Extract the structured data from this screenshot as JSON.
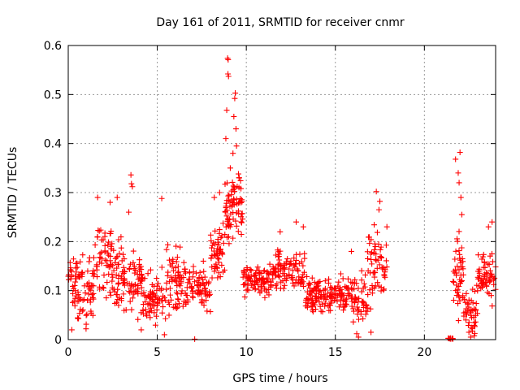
{
  "chart_data": {
    "type": "scatter",
    "title": "Day 161 of 2011, SRMTID for receiver cnmr",
    "xlabel": "GPS time / hours",
    "ylabel": "SRMTID / TECUs",
    "xlim": [
      0,
      24
    ],
    "ylim": [
      0,
      0.6
    ],
    "x_ticks": [
      0,
      5,
      10,
      15,
      20
    ],
    "x_tick_labels": [
      "0",
      "5",
      "10",
      "15",
      "20"
    ],
    "y_ticks": [
      0,
      0.1,
      0.2,
      0.3,
      0.4,
      0.5,
      0.6
    ],
    "y_tick_labels": [
      "0",
      "0.1",
      "0.2",
      "0.3",
      "0.4",
      "0.5",
      "0.6"
    ],
    "grid": true,
    "marker": "+",
    "color": "#ff0000",
    "series": [
      {
        "name": "SRMTID",
        "segments": [
          {
            "x_start": 0.0,
            "x_end": 0.5,
            "y_base": 0.12,
            "y_spread": 0.08,
            "count": 30
          },
          {
            "x_start": 0.5,
            "x_end": 1.5,
            "y_base": 0.1,
            "y_spread": 0.1,
            "count": 60
          },
          {
            "x_start": 1.5,
            "x_end": 2.5,
            "y_base": 0.16,
            "y_spread": 0.1,
            "count": 60
          },
          {
            "x_start": 2.5,
            "x_end": 3.5,
            "y_base": 0.13,
            "y_spread": 0.1,
            "count": 60
          },
          {
            "x_start": 3.5,
            "x_end": 4.2,
            "y_base": 0.12,
            "y_spread": 0.09,
            "count": 45
          },
          {
            "x_start": 4.2,
            "x_end": 5.5,
            "y_base": 0.08,
            "y_spread": 0.08,
            "count": 70
          },
          {
            "x_start": 5.5,
            "x_end": 6.5,
            "y_base": 0.12,
            "y_spread": 0.09,
            "count": 60
          },
          {
            "x_start": 6.5,
            "x_end": 8.0,
            "y_base": 0.11,
            "y_spread": 0.06,
            "count": 80
          },
          {
            "x_start": 8.0,
            "x_end": 8.8,
            "y_base": 0.17,
            "y_spread": 0.08,
            "count": 55
          },
          {
            "x_start": 8.8,
            "x_end": 9.8,
            "y_base": 0.26,
            "y_spread": 0.1,
            "count": 75
          },
          {
            "x_start": 9.8,
            "x_end": 11.5,
            "y_base": 0.12,
            "y_spread": 0.05,
            "count": 100
          },
          {
            "x_start": 11.5,
            "x_end": 13.3,
            "y_base": 0.14,
            "y_spread": 0.06,
            "count": 100
          },
          {
            "x_start": 13.3,
            "x_end": 14.6,
            "y_base": 0.09,
            "y_spread": 0.05,
            "count": 80
          },
          {
            "x_start": 14.6,
            "x_end": 16.0,
            "y_base": 0.09,
            "y_spread": 0.05,
            "count": 80
          },
          {
            "x_start": 16.0,
            "x_end": 16.8,
            "y_base": 0.08,
            "y_spread": 0.07,
            "count": 45
          },
          {
            "x_start": 16.8,
            "x_end": 17.9,
            "y_base": 0.15,
            "y_spread": 0.11,
            "count": 60
          },
          {
            "x_start": 21.3,
            "x_end": 21.6,
            "y_base": 0.002,
            "y_spread": 0.003,
            "count": 8
          },
          {
            "x_start": 21.6,
            "x_end": 22.2,
            "y_base": 0.13,
            "y_spread": 0.11,
            "count": 45
          },
          {
            "x_start": 22.2,
            "x_end": 23.0,
            "y_base": 0.06,
            "y_spread": 0.06,
            "count": 45
          },
          {
            "x_start": 23.0,
            "x_end": 24.0,
            "y_base": 0.13,
            "y_spread": 0.07,
            "count": 60
          }
        ],
        "peaks": [
          {
            "x": 8.95,
            "y": 0.574
          },
          {
            "x": 8.98,
            "y": 0.571
          },
          {
            "x": 8.97,
            "y": 0.542
          },
          {
            "x": 9.0,
            "y": 0.537
          },
          {
            "x": 9.38,
            "y": 0.503
          },
          {
            "x": 9.35,
            "y": 0.492
          },
          {
            "x": 8.9,
            "y": 0.468
          },
          {
            "x": 9.3,
            "y": 0.455
          },
          {
            "x": 9.42,
            "y": 0.43
          },
          {
            "x": 8.85,
            "y": 0.41
          },
          {
            "x": 9.45,
            "y": 0.395
          },
          {
            "x": 9.25,
            "y": 0.38
          },
          {
            "x": 9.1,
            "y": 0.35
          },
          {
            "x": 9.6,
            "y": 0.33
          },
          {
            "x": 3.52,
            "y": 0.336
          },
          {
            "x": 3.55,
            "y": 0.318
          },
          {
            "x": 3.6,
            "y": 0.312
          },
          {
            "x": 3.4,
            "y": 0.26
          },
          {
            "x": 1.65,
            "y": 0.29
          },
          {
            "x": 2.35,
            "y": 0.28
          },
          {
            "x": 2.75,
            "y": 0.29
          },
          {
            "x": 5.25,
            "y": 0.288
          },
          {
            "x": 8.2,
            "y": 0.29
          },
          {
            "x": 8.5,
            "y": 0.3
          },
          {
            "x": 21.75,
            "y": 0.368
          },
          {
            "x": 22.0,
            "y": 0.382
          },
          {
            "x": 21.9,
            "y": 0.34
          },
          {
            "x": 21.95,
            "y": 0.32
          },
          {
            "x": 22.05,
            "y": 0.29
          },
          {
            "x": 22.1,
            "y": 0.255
          },
          {
            "x": 17.3,
            "y": 0.302
          },
          {
            "x": 17.5,
            "y": 0.282
          },
          {
            "x": 17.45,
            "y": 0.265
          },
          {
            "x": 7.1,
            "y": 0.001
          },
          {
            "x": 16.3,
            "y": 0.005
          },
          {
            "x": 16.2,
            "y": 0.012
          },
          {
            "x": 17.0,
            "y": 0.015
          },
          {
            "x": 4.1,
            "y": 0.02
          },
          {
            "x": 5.4,
            "y": 0.01
          },
          {
            "x": 22.6,
            "y": 0.005
          },
          {
            "x": 22.8,
            "y": 0.008
          },
          {
            "x": 22.5,
            "y": 0.015
          },
          {
            "x": 0.2,
            "y": 0.02
          },
          {
            "x": 1.0,
            "y": 0.022
          },
          {
            "x": 23.8,
            "y": 0.24
          },
          {
            "x": 23.6,
            "y": 0.23
          },
          {
            "x": 12.8,
            "y": 0.24
          },
          {
            "x": 13.2,
            "y": 0.23
          },
          {
            "x": 11.9,
            "y": 0.22
          },
          {
            "x": 15.9,
            "y": 0.18
          }
        ]
      }
    ]
  }
}
